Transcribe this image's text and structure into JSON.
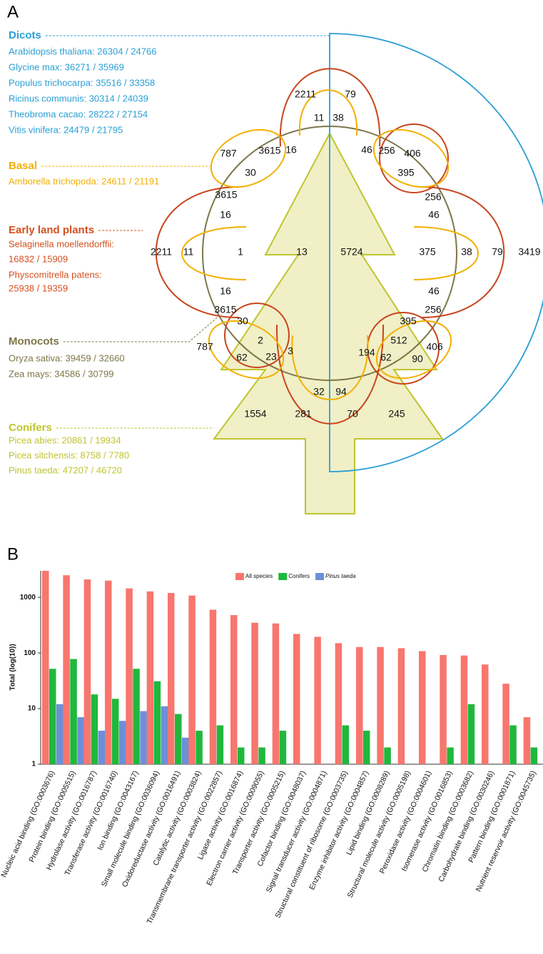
{
  "panel_labels": [
    "A",
    "B"
  ],
  "panel_a": {
    "groups": [
      {
        "name": "Dicots",
        "color": "#2a9fd6",
        "species": [
          "Arabidopsis thaliana: 26304 / 24766",
          "Glycine max: 36271 / 35969",
          "Populus trichocarpa: 35516 / 33358",
          "Ricinus communis: 30314 / 24039",
          "Theobroma cacao: 28222 / 27154",
          "Vitis vinifera: 24479 / 21795"
        ]
      },
      {
        "name": "Basal",
        "color": "#f2b000",
        "species": [
          "Amborella trichopoda: 24611 / 21191"
        ]
      },
      {
        "name": "Early land plants",
        "color": "#d4501e",
        "species": [
          "Selaginella moellendorffii:",
          "16832 / 15909",
          "Physcomitrella patens:",
          "25938 / 19359"
        ]
      },
      {
        "name": "Monocots",
        "color": "#7d7648",
        "species": [
          "Oryza sativa: 39459 / 32660",
          "Zea mays: 34586 / 30799"
        ]
      },
      {
        "name": "Conifers",
        "color": "#bfc52f",
        "species": [
          "Picea abies: 20861 / 19934",
          "Picea sitchensis: 8758 / 7780",
          "Pinus taeda: 47207 / 46720"
        ]
      }
    ],
    "venn_counts": [
      2211,
      79,
      11,
      38,
      787,
      3615,
      16,
      30,
      46,
      256,
      406,
      395,
      3615,
      256,
      16,
      46,
      2211,
      11,
      1,
      13,
      5724,
      375,
      38,
      79,
      3419,
      16,
      46,
      3615,
      256,
      30,
      395,
      2,
      512,
      787,
      406,
      62,
      23,
      3,
      194,
      62,
      90,
      32,
      94,
      1554,
      281,
      70,
      245
    ]
  },
  "chart_data": {
    "type": "bar",
    "y_label": "Total (log(10))",
    "log_scale": true,
    "ylim": [
      1,
      3000
    ],
    "yticks": [
      1,
      10,
      100,
      1000
    ],
    "legend": "top",
    "categories": [
      "Nucleic acid binding (GO:0003676)",
      "Protein binding (GO:0005515)",
      "Hydrolase activity (GO:0016787)",
      "Transferase activity (GO:0016740)",
      "Ion binding (GO:0043167)",
      "Small molecule binding (GO:0036094)",
      "Oxidoreductase activity (GO:0016491)",
      "Catalytic activity (GO:0003824)",
      "Transmembrane transporter activity (GO:0022857)",
      "Ligase activity (GO:0016874)",
      "Electron carrier activity (GO:0009055)",
      "Transporter activity (GO:0005215)",
      "Cofactor binding (GO:0048037)",
      "Signal transducer activity (GO:0004871)",
      "Structural constituent of ribosome (GO:0003735)",
      "Enzyme inhibitor activity (GO:0004857)",
      "Lipid binding (GO:0008289)",
      "Structural molecule activity (GO:0005198)",
      "Peroxidase activity (GO:0004601)",
      "Isomerase activity (GO:0016853)",
      "Chromatin binding (GO:0003682)",
      "Carbohydrate binding (GO:0030246)",
      "Pattern binding (GO:0001871)",
      "Nutrient reservoir activity (GO:0045735)"
    ],
    "series": [
      {
        "name": "All species",
        "color": "#f8766d",
        "values": [
          3000,
          2500,
          2100,
          2000,
          1450,
          1280,
          1200,
          1080,
          600,
          480,
          350,
          340,
          220,
          195,
          150,
          128,
          128,
          122,
          108,
          92,
          90,
          62,
          28,
          7
        ]
      },
      {
        "name": "Conifers",
        "color": "#1fb83c",
        "values": [
          52,
          78,
          18,
          15,
          52,
          31,
          8,
          4,
          5,
          2,
          2,
          4,
          1,
          1,
          5,
          4,
          2,
          1,
          1,
          2,
          12,
          1,
          5,
          2
        ]
      },
      {
        "name": "Pinus taeda",
        "color": "#6d8fd8",
        "values": [
          12,
          7,
          4,
          6,
          9,
          11,
          3,
          1,
          1,
          1,
          1,
          1,
          1,
          1,
          1,
          1,
          1,
          1,
          1,
          1,
          1,
          1,
          1,
          1
        ]
      }
    ]
  }
}
